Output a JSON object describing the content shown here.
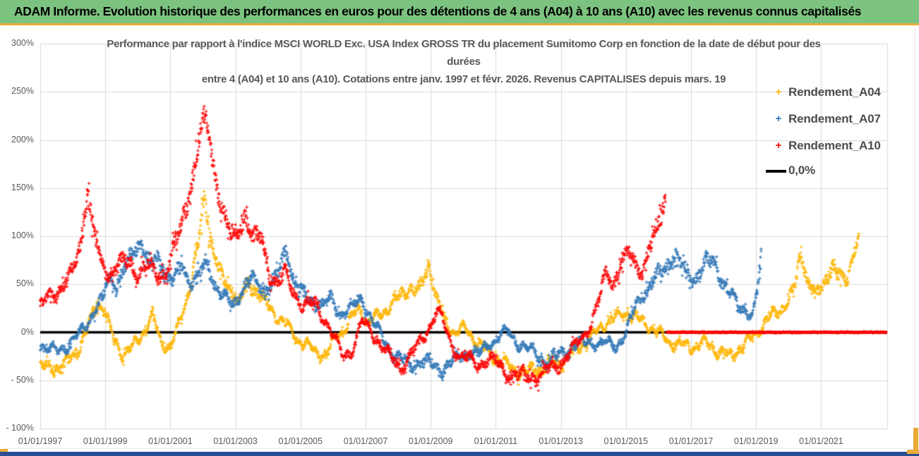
{
  "header": {
    "title": "ADAM Informe. Evolution historique des performances en euros pour des détentions de 4 ans (A04) à 10 ans (A10) avec les revenus connus capitalisés",
    "bg_color": "#7CC37F"
  },
  "colors": {
    "gold_strip": "#E9AB35",
    "bottom_bar": "#2A4E92",
    "grid": "#D9D9D9",
    "axis_text": "#595959",
    "zero_line": "#000000"
  },
  "chart_data": {
    "type": "scatter",
    "title_line1": "Performance par rapport à l'indice MSCI WORLD Exc. USA Index GROSS TR  du placement Sumitomo Corp en fonction de la date de début pour des",
    "title_line2": "durées",
    "title_line3": "entre 4 (A04) et 10 ans (A10). Cotations entre janv. 1997 et févr. 2026. Revenus CAPITALISES depuis mars. 19",
    "x_range": [
      1997.0,
      2023.03
    ],
    "y_range": [
      -100,
      300
    ],
    "grid": true,
    "legend_position": "right",
    "y_ticks": [
      {
        "value": 300,
        "label": "300%"
      },
      {
        "value": 250,
        "label": "250%"
      },
      {
        "value": 200,
        "label": "200%"
      },
      {
        "value": 150,
        "label": "150%"
      },
      {
        "value": 100,
        "label": "100%"
      },
      {
        "value": 50,
        "label": "50%"
      },
      {
        "value": 0,
        "label": "0%"
      },
      {
        "value": -50,
        "label": "- 50%"
      },
      {
        "value": -100,
        "label": "- 100%"
      }
    ],
    "x_ticks": [
      {
        "year": 1997,
        "label": "01/01/1997"
      },
      {
        "year": 1999,
        "label": "01/01/1999"
      },
      {
        "year": 2001,
        "label": "01/01/2001"
      },
      {
        "year": 2003,
        "label": "01/01/2003"
      },
      {
        "year": 2005,
        "label": "01/01/2005"
      },
      {
        "year": 2007,
        "label": "01/01/2007"
      },
      {
        "year": 2009,
        "label": "01/01/2009"
      },
      {
        "year": 2011,
        "label": "01/01/2011"
      },
      {
        "year": 2013,
        "label": "01/01/2013"
      },
      {
        "year": 2015,
        "label": "01/01/2015"
      },
      {
        "year": 2017,
        "label": "01/01/2017"
      },
      {
        "year": 2019,
        "label": "01/01/2019"
      },
      {
        "year": 2021,
        "label": "01/01/2021"
      }
    ],
    "zero_line": {
      "label": "0,0%",
      "value": 0,
      "color": "#000000"
    },
    "series": [
      {
        "name": "Rendement_A04",
        "color": "#FFB400",
        "marker": "+",
        "seed": 11,
        "breakpoints": [
          [
            1997.0,
            -35
          ],
          [
            1997.4,
            -38
          ],
          [
            1997.75,
            -33
          ],
          [
            1998.1,
            -22
          ],
          [
            1998.45,
            3
          ],
          [
            1998.75,
            32
          ],
          [
            1999.0,
            22
          ],
          [
            1999.25,
            -8
          ],
          [
            1999.55,
            -22
          ],
          [
            1999.85,
            -15
          ],
          [
            2000.1,
            -4
          ],
          [
            2000.45,
            18
          ],
          [
            2000.7,
            -10
          ],
          [
            2001.0,
            -15
          ],
          [
            2001.3,
            10
          ],
          [
            2001.6,
            48
          ],
          [
            2001.85,
            92
          ],
          [
            2002.05,
            138
          ],
          [
            2002.3,
            88
          ],
          [
            2002.6,
            55
          ],
          [
            2002.9,
            44
          ],
          [
            2003.1,
            30
          ],
          [
            2003.4,
            52
          ],
          [
            2003.7,
            40
          ],
          [
            2004.0,
            27
          ],
          [
            2004.3,
            16
          ],
          [
            2004.65,
            4
          ],
          [
            2005.0,
            -10
          ],
          [
            2005.4,
            -18
          ],
          [
            2005.8,
            -24
          ],
          [
            2006.1,
            -4
          ],
          [
            2006.45,
            8
          ],
          [
            2006.8,
            26
          ],
          [
            2007.05,
            10
          ],
          [
            2007.35,
            16
          ],
          [
            2007.7,
            26
          ],
          [
            2008.0,
            36
          ],
          [
            2008.35,
            46
          ],
          [
            2008.65,
            42
          ],
          [
            2008.95,
            72
          ],
          [
            2009.15,
            38
          ],
          [
            2009.45,
            10
          ],
          [
            2009.75,
            0
          ],
          [
            2010.05,
            4
          ],
          [
            2010.4,
            -8
          ],
          [
            2010.8,
            -22
          ],
          [
            2011.15,
            -30
          ],
          [
            2011.5,
            -38
          ],
          [
            2011.9,
            -41
          ],
          [
            2012.3,
            -38
          ],
          [
            2012.7,
            -34
          ],
          [
            2013.05,
            -29
          ],
          [
            2013.4,
            -21
          ],
          [
            2013.8,
            -9
          ],
          [
            2014.1,
            0
          ],
          [
            2014.4,
            12
          ],
          [
            2014.75,
            16
          ],
          [
            2015.05,
            21
          ],
          [
            2015.35,
            14
          ],
          [
            2015.7,
            7
          ],
          [
            2016.05,
            -2
          ],
          [
            2016.35,
            -11
          ],
          [
            2016.7,
            -13
          ],
          [
            2017.0,
            -15
          ],
          [
            2017.4,
            -11
          ],
          [
            2017.8,
            -18
          ],
          [
            2018.2,
            -25
          ],
          [
            2018.6,
            -14
          ],
          [
            2019.0,
            -2
          ],
          [
            2019.3,
            12
          ],
          [
            2019.7,
            22
          ],
          [
            2020.0,
            32
          ],
          [
            2020.2,
            48
          ],
          [
            2020.38,
            85
          ],
          [
            2020.6,
            50
          ],
          [
            2020.85,
            38
          ],
          [
            2021.1,
            55
          ],
          [
            2021.35,
            67
          ],
          [
            2021.6,
            56
          ],
          [
            2021.8,
            58
          ],
          [
            2022.0,
            80
          ],
          [
            2022.16,
            97
          ]
        ]
      },
      {
        "name": "Rendement_A07",
        "color": "#2E75B6",
        "marker": "+",
        "seed": 22,
        "breakpoints": [
          [
            1997.0,
            -12
          ],
          [
            1997.3,
            -20
          ],
          [
            1997.6,
            -16
          ],
          [
            1998.0,
            -12
          ],
          [
            1998.3,
            4
          ],
          [
            1998.6,
            18
          ],
          [
            1998.9,
            32
          ],
          [
            1999.12,
            58
          ],
          [
            1999.35,
            48
          ],
          [
            1999.6,
            66
          ],
          [
            1999.9,
            86
          ],
          [
            2000.1,
            94
          ],
          [
            2000.35,
            70
          ],
          [
            2000.6,
            76
          ],
          [
            2000.9,
            58
          ],
          [
            2001.1,
            54
          ],
          [
            2001.35,
            70
          ],
          [
            2001.6,
            52
          ],
          [
            2001.9,
            62
          ],
          [
            2002.1,
            72
          ],
          [
            2002.4,
            48
          ],
          [
            2002.7,
            34
          ],
          [
            2002.95,
            27
          ],
          [
            2003.2,
            45
          ],
          [
            2003.5,
            58
          ],
          [
            2003.8,
            44
          ],
          [
            2004.1,
            50
          ],
          [
            2004.35,
            62
          ],
          [
            2004.55,
            88
          ],
          [
            2004.75,
            58
          ],
          [
            2005.0,
            42
          ],
          [
            2005.3,
            32
          ],
          [
            2005.65,
            29
          ],
          [
            2005.95,
            33
          ],
          [
            2006.2,
            20
          ],
          [
            2006.5,
            25
          ],
          [
            2006.9,
            33
          ],
          [
            2007.2,
            14
          ],
          [
            2007.5,
            -6
          ],
          [
            2007.8,
            -20
          ],
          [
            2008.1,
            -28
          ],
          [
            2008.35,
            -36
          ],
          [
            2008.7,
            -28
          ],
          [
            2009.0,
            -33
          ],
          [
            2009.3,
            -39
          ],
          [
            2009.6,
            -32
          ],
          [
            2009.9,
            -27
          ],
          [
            2010.2,
            -19
          ],
          [
            2010.5,
            -23
          ],
          [
            2010.8,
            -12
          ],
          [
            2011.1,
            -4
          ],
          [
            2011.35,
            1
          ],
          [
            2011.6,
            -8
          ],
          [
            2011.9,
            -15
          ],
          [
            2012.2,
            -22
          ],
          [
            2012.5,
            -30
          ],
          [
            2012.8,
            -27
          ],
          [
            2013.1,
            -20
          ],
          [
            2013.5,
            -12
          ],
          [
            2013.9,
            -10
          ],
          [
            2014.3,
            -12
          ],
          [
            2014.7,
            -14
          ],
          [
            2015.0,
            0
          ],
          [
            2015.3,
            28
          ],
          [
            2015.6,
            42
          ],
          [
            2015.95,
            58
          ],
          [
            2016.25,
            70
          ],
          [
            2016.5,
            80
          ],
          [
            2016.8,
            64
          ],
          [
            2017.1,
            55
          ],
          [
            2017.45,
            72
          ],
          [
            2017.7,
            74
          ],
          [
            2017.95,
            55
          ],
          [
            2018.2,
            40
          ],
          [
            2018.45,
            27
          ],
          [
            2018.7,
            24
          ],
          [
            2018.9,
            17
          ],
          [
            2019.05,
            45
          ],
          [
            2019.17,
            82
          ]
        ]
      },
      {
        "name": "Rendement_A10",
        "color": "#FF0000",
        "marker": "+",
        "seed": 33,
        "flat_zero_from": 2016.25,
        "flat_zero_to": 2023.03,
        "breakpoints": [
          [
            1997.0,
            25
          ],
          [
            1997.35,
            40
          ],
          [
            1997.7,
            48
          ],
          [
            1998.0,
            62
          ],
          [
            1998.25,
            95
          ],
          [
            1998.45,
            148
          ],
          [
            1998.6,
            112
          ],
          [
            1998.85,
            72
          ],
          [
            1999.1,
            62
          ],
          [
            1999.4,
            70
          ],
          [
            1999.7,
            73
          ],
          [
            2000.0,
            62
          ],
          [
            2000.3,
            70
          ],
          [
            2000.6,
            58
          ],
          [
            2000.9,
            66
          ],
          [
            2001.15,
            90
          ],
          [
            2001.45,
            125
          ],
          [
            2001.75,
            172
          ],
          [
            2001.95,
            212
          ],
          [
            2002.08,
            222
          ],
          [
            2002.25,
            190
          ],
          [
            2002.45,
            150
          ],
          [
            2002.65,
            120
          ],
          [
            2002.9,
            96
          ],
          [
            2003.1,
            108
          ],
          [
            2003.3,
            122
          ],
          [
            2003.55,
            95
          ],
          [
            2003.8,
            100
          ],
          [
            2004.05,
            62
          ],
          [
            2004.3,
            48
          ],
          [
            2004.55,
            62
          ],
          [
            2004.8,
            44
          ],
          [
            2005.1,
            24
          ],
          [
            2005.45,
            32
          ],
          [
            2005.75,
            14
          ],
          [
            2006.0,
            -6
          ],
          [
            2006.3,
            -23
          ],
          [
            2006.6,
            -17
          ],
          [
            2006.9,
            10
          ],
          [
            2007.15,
            4
          ],
          [
            2007.5,
            -16
          ],
          [
            2007.8,
            -28
          ],
          [
            2008.1,
            -36
          ],
          [
            2008.4,
            -24
          ],
          [
            2008.7,
            -10
          ],
          [
            2008.95,
            8
          ],
          [
            2009.2,
            22
          ],
          [
            2009.4,
            8
          ],
          [
            2009.65,
            -12
          ],
          [
            2009.9,
            -25
          ],
          [
            2010.15,
            -29
          ],
          [
            2010.45,
            -33
          ],
          [
            2010.7,
            -28
          ],
          [
            2011.0,
            -32
          ],
          [
            2011.3,
            -41
          ],
          [
            2011.6,
            -45
          ],
          [
            2011.9,
            -48
          ],
          [
            2012.2,
            -45
          ],
          [
            2012.5,
            -42
          ],
          [
            2012.8,
            -37
          ],
          [
            2013.1,
            -27
          ],
          [
            2013.4,
            -17
          ],
          [
            2013.7,
            -3
          ],
          [
            2013.95,
            12
          ],
          [
            2014.15,
            30
          ],
          [
            2014.4,
            62
          ],
          [
            2014.6,
            52
          ],
          [
            2014.85,
            72
          ],
          [
            2015.1,
            82
          ],
          [
            2015.3,
            71
          ],
          [
            2015.5,
            65
          ],
          [
            2015.7,
            85
          ],
          [
            2015.9,
            100
          ],
          [
            2016.05,
            118
          ],
          [
            2016.22,
            142
          ]
        ]
      }
    ]
  },
  "legend": {
    "items": [
      {
        "label": "Rendement_A04",
        "color": "#FFB400"
      },
      {
        "label": "Rendement_A07",
        "color": "#2E75B6"
      },
      {
        "label": "Rendement_A10",
        "color": "#FF0000"
      }
    ],
    "zero_label": "0,0%"
  }
}
